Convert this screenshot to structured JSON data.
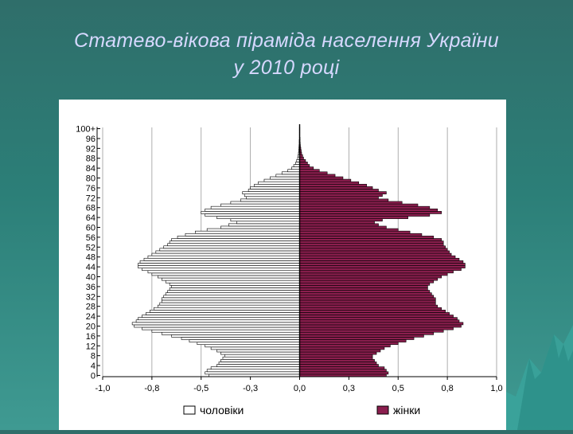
{
  "slide": {
    "title_line1": "Статево-вікова піраміда населення України",
    "title_line2": "у 2010 році",
    "colors": {
      "background": "#2c7f78",
      "title_text": "#d6d8ff",
      "panel": "#ffffff",
      "female_fill": "#8b1e4e",
      "male_fill": "#ffffff"
    }
  },
  "chart_data": {
    "type": "bar",
    "orientation": "horizontal-pyramid",
    "title": "",
    "xlabel": "",
    "ylabel": "",
    "xlim": [
      -1.0,
      1.0
    ],
    "x_tick_labels": [
      "-1,0",
      "-0,8",
      "-0,5",
      "-0,3",
      "0,0",
      "0,3",
      "0,5",
      "0,8",
      "1,0"
    ],
    "y_tick_labels": [
      "100+",
      "96",
      "92",
      "88",
      "84",
      "80",
      "76",
      "72",
      "68",
      "64",
      "60",
      "56",
      "52",
      "48",
      "44",
      "40",
      "36",
      "32",
      "28",
      "24",
      "20",
      "16",
      "12",
      "8",
      "4",
      "0"
    ],
    "legend_position": "bottom",
    "grid": "vertical",
    "ages": [
      0,
      1,
      2,
      3,
      4,
      5,
      6,
      7,
      8,
      9,
      10,
      11,
      12,
      13,
      14,
      15,
      16,
      17,
      18,
      19,
      20,
      21,
      22,
      23,
      24,
      25,
      26,
      27,
      28,
      29,
      30,
      31,
      32,
      33,
      34,
      35,
      36,
      37,
      38,
      39,
      40,
      41,
      42,
      43,
      44,
      45,
      46,
      47,
      48,
      49,
      50,
      51,
      52,
      53,
      54,
      55,
      56,
      57,
      58,
      59,
      60,
      61,
      62,
      63,
      64,
      65,
      66,
      67,
      68,
      69,
      70,
      71,
      72,
      73,
      74,
      75,
      76,
      77,
      78,
      79,
      80,
      81,
      82,
      83,
      84,
      85,
      86,
      87,
      88,
      89,
      90,
      91,
      92,
      93,
      94,
      95,
      96,
      97,
      98,
      99,
      100
    ],
    "series": [
      {
        "name": "чоловіки",
        "values": [
          0.46,
          0.48,
          0.47,
          0.45,
          0.42,
          0.41,
          0.4,
          0.39,
          0.38,
          0.4,
          0.42,
          0.45,
          0.48,
          0.52,
          0.56,
          0.6,
          0.65,
          0.7,
          0.75,
          0.8,
          0.84,
          0.85,
          0.83,
          0.82,
          0.8,
          0.78,
          0.76,
          0.74,
          0.72,
          0.71,
          0.7,
          0.7,
          0.69,
          0.68,
          0.67,
          0.66,
          0.65,
          0.66,
          0.68,
          0.7,
          0.72,
          0.75,
          0.77,
          0.8,
          0.82,
          0.82,
          0.81,
          0.79,
          0.77,
          0.75,
          0.73,
          0.71,
          0.69,
          0.67,
          0.66,
          0.65,
          0.62,
          0.58,
          0.53,
          0.47,
          0.4,
          0.36,
          0.32,
          0.35,
          0.42,
          0.48,
          0.5,
          0.48,
          0.45,
          0.4,
          0.35,
          0.3,
          0.27,
          0.28,
          0.29,
          0.26,
          0.25,
          0.23,
          0.21,
          0.18,
          0.15,
          0.12,
          0.09,
          0.06,
          0.04,
          0.03,
          0.02,
          0.015,
          0.01,
          0.008,
          0.006,
          0.005,
          0.004,
          0.003,
          0.002,
          0.002,
          0.001,
          0.001,
          0.001,
          0.001,
          0.001
        ]
      },
      {
        "name": "жінки",
        "values": [
          0.44,
          0.45,
          0.44,
          0.43,
          0.4,
          0.39,
          0.38,
          0.37,
          0.37,
          0.39,
          0.41,
          0.43,
          0.46,
          0.5,
          0.54,
          0.58,
          0.63,
          0.68,
          0.73,
          0.78,
          0.82,
          0.83,
          0.81,
          0.8,
          0.78,
          0.76,
          0.74,
          0.72,
          0.7,
          0.69,
          0.69,
          0.69,
          0.68,
          0.67,
          0.66,
          0.65,
          0.65,
          0.66,
          0.68,
          0.7,
          0.72,
          0.75,
          0.78,
          0.82,
          0.84,
          0.84,
          0.83,
          0.81,
          0.79,
          0.77,
          0.76,
          0.75,
          0.74,
          0.73,
          0.73,
          0.72,
          0.68,
          0.62,
          0.56,
          0.5,
          0.44,
          0.4,
          0.38,
          0.42,
          0.55,
          0.66,
          0.72,
          0.7,
          0.66,
          0.6,
          0.52,
          0.45,
          0.4,
          0.42,
          0.44,
          0.4,
          0.37,
          0.34,
          0.3,
          0.26,
          0.22,
          0.18,
          0.14,
          0.1,
          0.07,
          0.05,
          0.04,
          0.03,
          0.02,
          0.015,
          0.01,
          0.008,
          0.006,
          0.004,
          0.003,
          0.002,
          0.002,
          0.001,
          0.001,
          0.001,
          0.001
        ]
      }
    ],
    "legend": [
      {
        "label": "чоловіки",
        "color": "#ffffff"
      },
      {
        "label": "жінки",
        "color": "#8b1e4e"
      }
    ]
  }
}
